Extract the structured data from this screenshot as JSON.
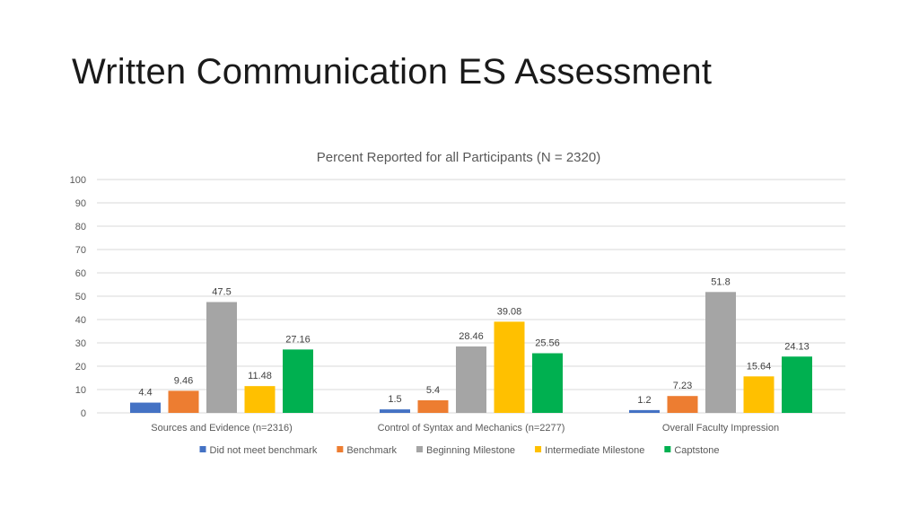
{
  "slide": {
    "title": "Written Communication ES Assessment"
  },
  "chart_data": {
    "type": "bar",
    "title": "Percent Reported for all Participants (N = 2320)",
    "xlabel": "",
    "ylabel": "",
    "ylim": [
      0,
      100
    ],
    "yticks": [
      0,
      10,
      20,
      30,
      40,
      50,
      60,
      70,
      80,
      90,
      100
    ],
    "grid": true,
    "legend_position": "bottom",
    "categories": [
      "Sources and Evidence (n=2316)",
      "Control of Syntax and Mechanics (n=2277)",
      "Overall Faculty Impression"
    ],
    "series": [
      {
        "name": "Did not meet benchmark",
        "color": "#4472c4",
        "values": [
          4.4,
          1.5,
          1.2
        ]
      },
      {
        "name": "Benchmark",
        "color": "#ed7d31",
        "values": [
          9.46,
          5.4,
          7.23
        ]
      },
      {
        "name": "Beginning Milestone",
        "color": "#a5a5a5",
        "values": [
          47.5,
          28.46,
          51.8
        ]
      },
      {
        "name": "Intermediate Milestone",
        "color": "#ffc000",
        "values": [
          11.48,
          39.08,
          15.64
        ]
      },
      {
        "name": "Captstone",
        "color": "#00b050",
        "values": [
          27.16,
          25.56,
          24.13
        ]
      }
    ]
  }
}
